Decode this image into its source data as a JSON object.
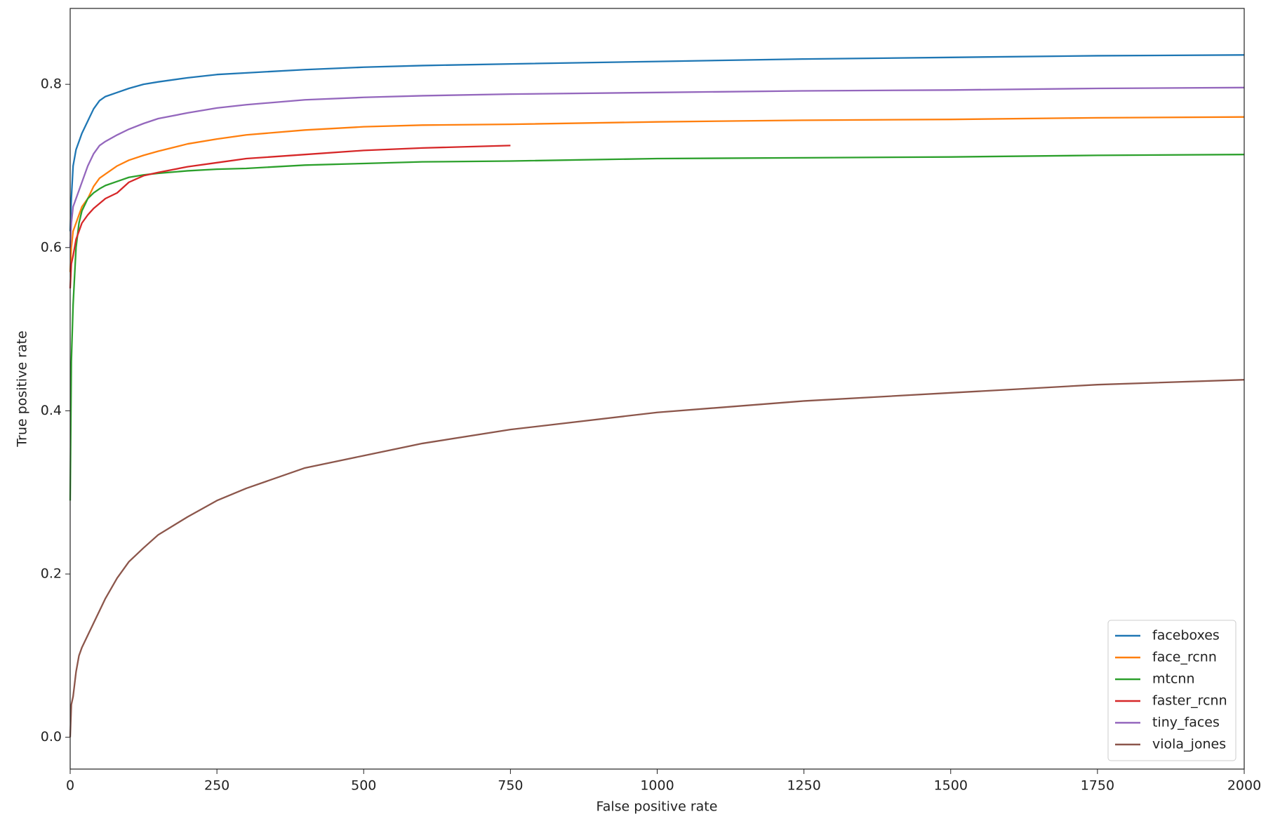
{
  "chart_data": {
    "type": "line",
    "xlabel": "False positive rate",
    "ylabel": "True positive rate",
    "x": [
      0,
      2,
      5,
      10,
      15,
      20,
      30,
      40,
      50,
      60,
      80,
      100,
      125,
      150,
      200,
      250,
      300,
      400,
      500,
      600,
      750,
      1000,
      1250,
      1500,
      1750,
      2000
    ],
    "series": [
      {
        "name": "faceboxes",
        "color": "#1f77b4",
        "values": [
          0.62,
          0.66,
          0.7,
          0.72,
          0.73,
          0.74,
          0.755,
          0.77,
          0.78,
          0.785,
          0.79,
          0.795,
          0.8,
          0.803,
          0.808,
          0.812,
          0.814,
          0.818,
          0.821,
          0.823,
          0.825,
          0.828,
          0.831,
          0.833,
          0.835,
          0.836
        ]
      },
      {
        "name": "face_rcnn",
        "color": "#ff7f0e",
        "values": [
          0.57,
          0.6,
          0.62,
          0.63,
          0.64,
          0.65,
          0.66,
          0.675,
          0.685,
          0.69,
          0.7,
          0.707,
          0.713,
          0.718,
          0.727,
          0.733,
          0.738,
          0.744,
          0.748,
          0.75,
          0.751,
          0.754,
          0.756,
          0.757,
          0.759,
          0.76
        ]
      },
      {
        "name": "mtcnn",
        "color": "#2ca02c",
        "values": [
          0.29,
          0.46,
          0.53,
          0.6,
          0.63,
          0.645,
          0.66,
          0.667,
          0.672,
          0.676,
          0.681,
          0.686,
          0.689,
          0.691,
          0.694,
          0.696,
          0.697,
          0.701,
          0.703,
          0.705,
          0.706,
          0.709,
          0.71,
          0.711,
          0.713,
          0.714
        ]
      },
      {
        "name": "faster_rcnn",
        "color": "#d62728",
        "values": [
          0.55,
          0.58,
          0.59,
          0.61,
          0.62,
          0.63,
          0.64,
          0.648,
          0.654,
          0.66,
          0.667,
          0.68,
          0.688,
          0.692,
          0.699,
          0.704,
          0.709,
          0.714,
          0.719,
          0.722,
          0.725,
          null,
          null,
          null,
          null,
          null
        ]
      },
      {
        "name": "tiny_faces",
        "color": "#9467bd",
        "values": [
          0.6,
          0.63,
          0.65,
          0.66,
          0.67,
          0.68,
          0.7,
          0.715,
          0.725,
          0.73,
          0.738,
          0.745,
          0.752,
          0.758,
          0.765,
          0.771,
          0.775,
          0.781,
          0.784,
          0.786,
          0.788,
          0.79,
          0.792,
          0.793,
          0.795,
          0.796
        ]
      },
      {
        "name": "viola_jones",
        "color": "#8c564b",
        "values": [
          0.0,
          0.04,
          0.05,
          0.08,
          0.1,
          0.11,
          0.125,
          0.14,
          0.155,
          0.17,
          0.195,
          0.215,
          0.232,
          0.248,
          0.27,
          0.29,
          0.305,
          0.33,
          0.345,
          0.36,
          0.377,
          0.398,
          0.412,
          0.422,
          0.432,
          0.438
        ]
      }
    ],
    "xlim": [
      0,
      2000
    ],
    "xticks": [
      0,
      250,
      500,
      750,
      1000,
      1250,
      1500,
      1750,
      2000
    ],
    "ylim": [
      -0.039,
      0.893
    ],
    "yticks": [
      {
        "value": 0,
        "label": "0.0"
      },
      0.2,
      0.4,
      0.6,
      0.8
    ],
    "grid": false,
    "legend": "lower right"
  }
}
